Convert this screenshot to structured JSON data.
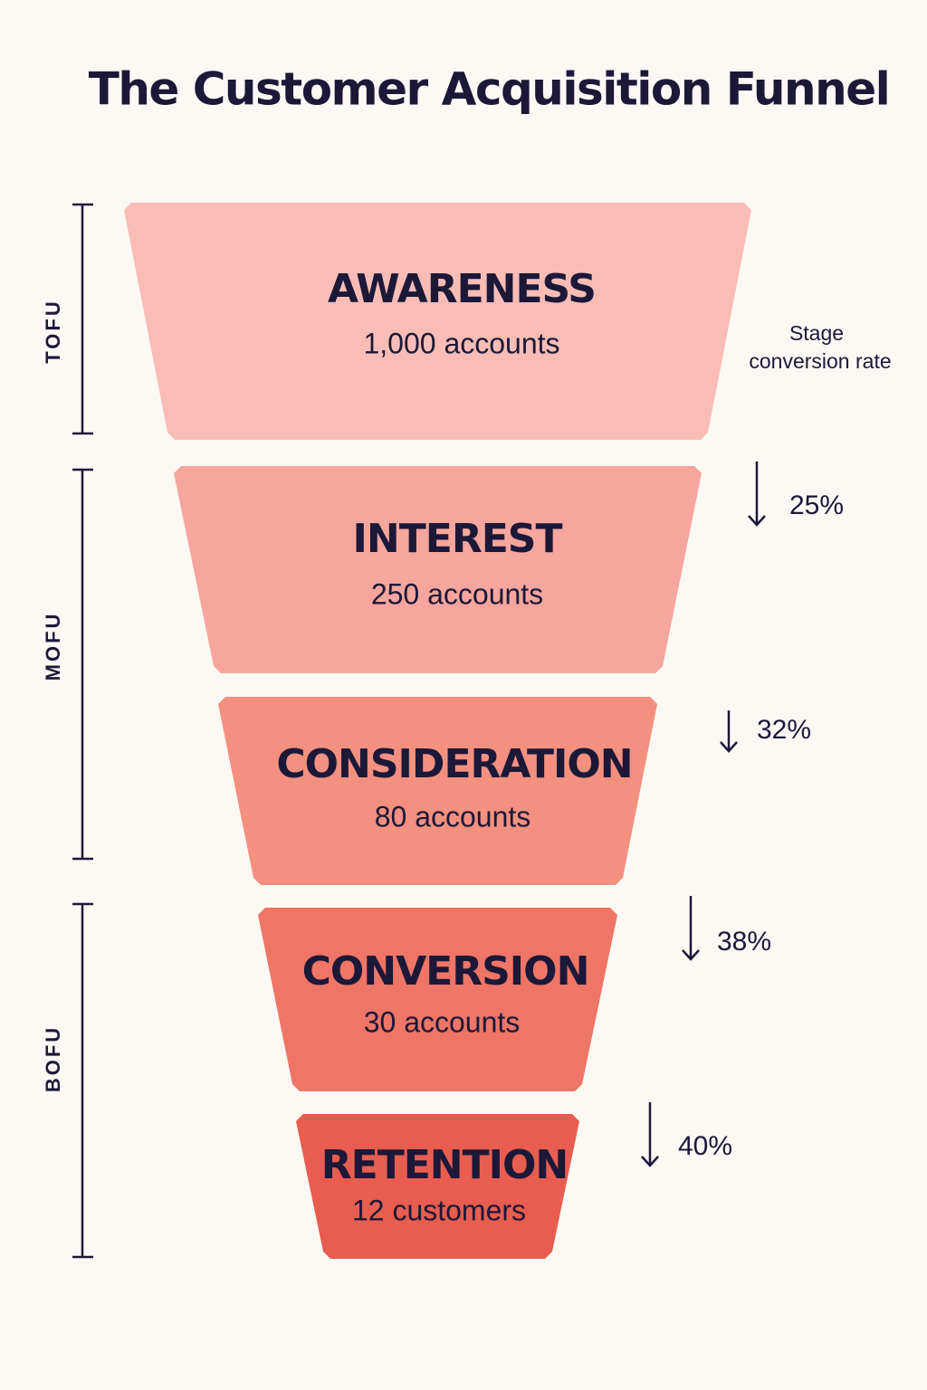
{
  "title": "The Customer Acquisition Funnel",
  "stages": [
    {
      "name": "AWARENESS",
      "count": "1,000 accounts"
    },
    {
      "name": "INTEREST",
      "count": "250 accounts"
    },
    {
      "name": "CONSIDERATION",
      "count": "80 accounts"
    },
    {
      "name": "CONVERSION",
      "count": "30 accounts"
    },
    {
      "name": "RETENTION",
      "count": "12 customers"
    }
  ],
  "conversion_header": [
    "Stage",
    "conversion rate"
  ],
  "rates": [
    "25%",
    "32%",
    "38%",
    "40%"
  ],
  "segments": [
    "TOFU",
    "MOFU",
    "BOFU"
  ]
}
